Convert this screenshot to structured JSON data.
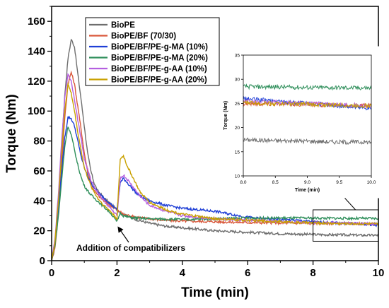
{
  "chart_data": {
    "type": "line",
    "xlabel": "Time (min)",
    "ylabel": "Torque (Nm)",
    "xlim": [
      0,
      10
    ],
    "ylim": [
      0,
      170
    ],
    "x_ticks": [
      "0",
      "2",
      "4",
      "6",
      "8",
      "10"
    ],
    "y_ticks": [
      "0",
      "20",
      "40",
      "60",
      "80",
      "100",
      "120",
      "140",
      "160"
    ],
    "grid": false,
    "legend_position": "top-left",
    "annotation": "Addition of compatibilizers",
    "series": [
      {
        "name": "BioPE",
        "color": "#6e6e6e",
        "points": [
          [
            0,
            0
          ],
          [
            0.1,
            12
          ],
          [
            0.2,
            38
          ],
          [
            0.3,
            75
          ],
          [
            0.4,
            110
          ],
          [
            0.5,
            135
          ],
          [
            0.6,
            148
          ],
          [
            0.7,
            143
          ],
          [
            0.8,
            125
          ],
          [
            0.9,
            108
          ],
          [
            1.0,
            90
          ],
          [
            1.1,
            72
          ],
          [
            1.2,
            60
          ],
          [
            1.3,
            52
          ],
          [
            1.4,
            47
          ],
          [
            1.6,
            42
          ],
          [
            1.8,
            38
          ],
          [
            2.0,
            34
          ],
          [
            2.2,
            31
          ],
          [
            2.5,
            28
          ],
          [
            3.0,
            25
          ],
          [
            3.5,
            23
          ],
          [
            4.0,
            22
          ],
          [
            4.5,
            21
          ],
          [
            5.0,
            20
          ],
          [
            5.5,
            19.5
          ],
          [
            6.0,
            19
          ],
          [
            6.5,
            18.5
          ],
          [
            7.0,
            18
          ],
          [
            7.5,
            17.8
          ],
          [
            8.0,
            17.5
          ],
          [
            8.5,
            17.3
          ],
          [
            9.0,
            17.2
          ],
          [
            9.5,
            17
          ],
          [
            10.0,
            17
          ]
        ]
      },
      {
        "name": "BioPE/BF (70/30)",
        "color": "#d9583b",
        "points": [
          [
            0,
            0
          ],
          [
            0.1,
            8
          ],
          [
            0.2,
            30
          ],
          [
            0.3,
            62
          ],
          [
            0.4,
            95
          ],
          [
            0.5,
            118
          ],
          [
            0.6,
            126
          ],
          [
            0.7,
            118
          ],
          [
            0.8,
            103
          ],
          [
            0.9,
            88
          ],
          [
            1.0,
            72
          ],
          [
            1.1,
            60
          ],
          [
            1.2,
            52
          ],
          [
            1.3,
            47
          ],
          [
            1.4,
            44
          ],
          [
            1.6,
            40
          ],
          [
            1.8,
            37
          ],
          [
            2.0,
            34
          ],
          [
            2.2,
            31
          ],
          [
            2.5,
            29.5
          ],
          [
            3.0,
            28
          ],
          [
            3.5,
            27
          ],
          [
            4.0,
            26.5
          ],
          [
            5.0,
            26
          ],
          [
            6.0,
            25.5
          ],
          [
            7.0,
            25.2
          ],
          [
            8.0,
            25
          ],
          [
            9.0,
            24.8
          ],
          [
            10.0,
            24.5
          ]
        ]
      },
      {
        "name": "BioPE/BF/PE-g-MA (10%)",
        "color": "#1f3fd6",
        "points": [
          [
            0,
            0
          ],
          [
            0.1,
            10
          ],
          [
            0.2,
            32
          ],
          [
            0.3,
            58
          ],
          [
            0.4,
            82
          ],
          [
            0.5,
            96
          ],
          [
            0.6,
            95
          ],
          [
            0.7,
            90
          ],
          [
            0.8,
            80
          ],
          [
            0.9,
            70
          ],
          [
            1.0,
            62
          ],
          [
            1.2,
            52
          ],
          [
            1.4,
            46
          ],
          [
            1.6,
            42
          ],
          [
            1.8,
            38
          ],
          [
            2.0,
            34
          ],
          [
            2.1,
            52
          ],
          [
            2.2,
            55
          ],
          [
            2.4,
            50
          ],
          [
            2.6,
            45
          ],
          [
            2.8,
            42
          ],
          [
            3.0,
            40
          ],
          [
            3.5,
            37
          ],
          [
            4.0,
            35
          ],
          [
            4.5,
            34
          ],
          [
            5.0,
            33
          ],
          [
            5.5,
            31
          ],
          [
            6.0,
            29
          ],
          [
            6.5,
            28
          ],
          [
            7.0,
            27.5
          ],
          [
            7.5,
            27
          ],
          [
            8.0,
            26
          ],
          [
            8.5,
            25.5
          ],
          [
            9.0,
            25
          ],
          [
            9.5,
            24.5
          ],
          [
            10.0,
            24
          ]
        ]
      },
      {
        "name": "BioPE/BF/PE-g-MA (20%)",
        "color": "#2f8f5b",
        "points": [
          [
            0,
            0
          ],
          [
            0.1,
            10
          ],
          [
            0.2,
            28
          ],
          [
            0.3,
            52
          ],
          [
            0.4,
            76
          ],
          [
            0.5,
            90
          ],
          [
            0.6,
            84
          ],
          [
            0.7,
            74
          ],
          [
            0.8,
            64
          ],
          [
            0.9,
            56
          ],
          [
            1.0,
            50
          ],
          [
            1.2,
            44
          ],
          [
            1.4,
            40
          ],
          [
            1.6,
            36
          ],
          [
            1.8,
            32
          ],
          [
            2.0,
            26
          ],
          [
            2.1,
            32
          ],
          [
            2.2,
            30
          ],
          [
            2.4,
            29
          ],
          [
            2.6,
            28.5
          ],
          [
            3.0,
            28
          ],
          [
            4.0,
            27.5
          ],
          [
            5.0,
            28
          ],
          [
            6.0,
            28.5
          ],
          [
            7.0,
            28.5
          ],
          [
            8.0,
            28.5
          ],
          [
            9.0,
            28.3
          ],
          [
            10.0,
            28.2
          ]
        ]
      },
      {
        "name": "BioPE/BF/PE-g-AA (10%)",
        "color": "#b45fe0",
        "points": [
          [
            0,
            0
          ],
          [
            0.1,
            14
          ],
          [
            0.2,
            42
          ],
          [
            0.3,
            78
          ],
          [
            0.4,
            108
          ],
          [
            0.5,
            125
          ],
          [
            0.6,
            120
          ],
          [
            0.7,
            108
          ],
          [
            0.8,
            94
          ],
          [
            0.9,
            82
          ],
          [
            1.0,
            68
          ],
          [
            1.2,
            54
          ],
          [
            1.4,
            46
          ],
          [
            1.6,
            40
          ],
          [
            1.8,
            35
          ],
          [
            2.0,
            30
          ],
          [
            2.1,
            55
          ],
          [
            2.2,
            57
          ],
          [
            2.4,
            52
          ],
          [
            2.6,
            46
          ],
          [
            2.8,
            41
          ],
          [
            3.0,
            37
          ],
          [
            3.5,
            33
          ],
          [
            4.0,
            30
          ],
          [
            5.0,
            28
          ],
          [
            6.0,
            27
          ],
          [
            7.0,
            26
          ],
          [
            8.0,
            25.5
          ],
          [
            9.0,
            25
          ],
          [
            10.0,
            24.5
          ]
        ]
      },
      {
        "name": "BioPE/BF/PE-g-AA (20%)",
        "color": "#c9a100",
        "points": [
          [
            0,
            0
          ],
          [
            0.1,
            12
          ],
          [
            0.2,
            38
          ],
          [
            0.3,
            70
          ],
          [
            0.4,
            100
          ],
          [
            0.5,
            118
          ],
          [
            0.6,
            112
          ],
          [
            0.7,
            100
          ],
          [
            0.8,
            86
          ],
          [
            0.9,
            74
          ],
          [
            1.0,
            62
          ],
          [
            1.2,
            50
          ],
          [
            1.4,
            42
          ],
          [
            1.6,
            37
          ],
          [
            1.8,
            33
          ],
          [
            2.0,
            28
          ],
          [
            2.1,
            68
          ],
          [
            2.2,
            70
          ],
          [
            2.3,
            64
          ],
          [
            2.5,
            55
          ],
          [
            2.7,
            46
          ],
          [
            3.0,
            39
          ],
          [
            3.5,
            34
          ],
          [
            4.0,
            31
          ],
          [
            5.0,
            28
          ],
          [
            6.0,
            27
          ],
          [
            7.0,
            26
          ],
          [
            8.0,
            25.2
          ],
          [
            9.0,
            24.8
          ],
          [
            10.0,
            24.5
          ]
        ]
      }
    ],
    "inset": {
      "xlabel": "Time (min)",
      "ylabel": "Torque (Nm)",
      "xlim": [
        8.0,
        10.0
      ],
      "ylim": [
        10,
        35
      ],
      "x_ticks": [
        "8.0",
        "8.5",
        "9.0",
        "9.5",
        "10.0"
      ],
      "y_ticks": [
        "10",
        "15",
        "20",
        "25",
        "30",
        "35"
      ]
    }
  }
}
